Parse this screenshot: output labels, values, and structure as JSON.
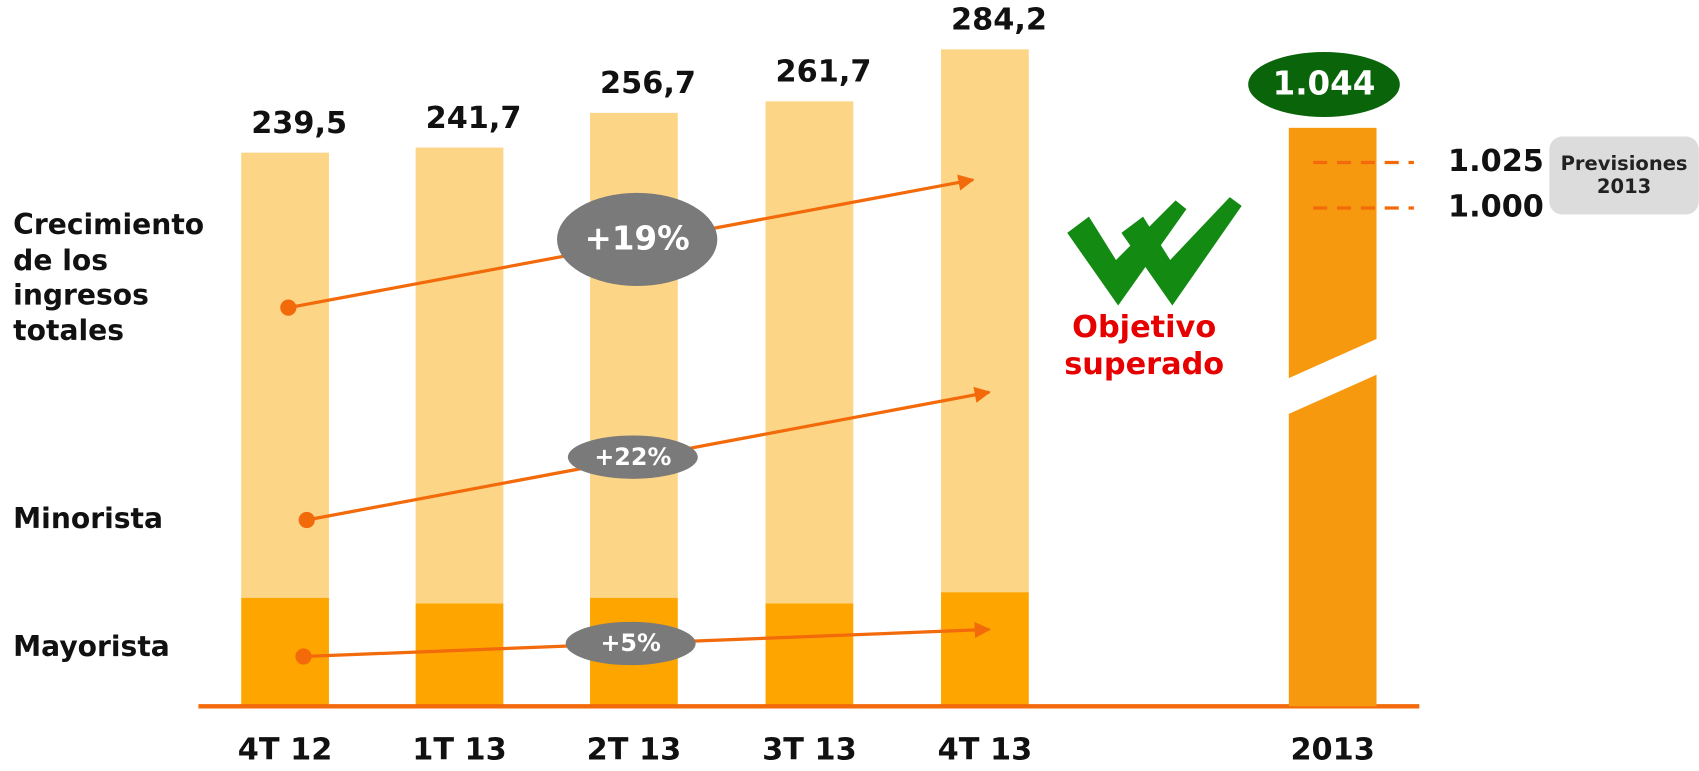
{
  "chart_data": {
    "type": "bar",
    "categories": [
      "4T 12",
      "1T 13",
      "2T 13",
      "3T 13",
      "4T 13"
    ],
    "series": [
      {
        "name": "Mayorista",
        "color": "#ffa500",
        "values": [
          47,
          44.5,
          47,
          44.5,
          49.4
        ]
      },
      {
        "name": "Minorista",
        "color": "#fdd586",
        "values": [
          192.5,
          197.2,
          209.7,
          217.2,
          234.8
        ]
      }
    ],
    "totals_name": "Crecimiento de los ingresos totales",
    "totals": [
      239.5,
      241.7,
      256.7,
      261.7,
      284.2
    ],
    "total_labels": [
      "239,5",
      "241,7",
      "256,7",
      "261,7",
      "284,2"
    ],
    "growth": {
      "values": [
        19,
        22,
        5
      ],
      "value_labels": [
        "+19%",
        "+22%",
        "+5%"
      ]
    },
    "annual": {
      "category": "2013",
      "value": 1044,
      "value_label": "1.044",
      "color": "#f7990f"
    },
    "targets": {
      "name": "Previsiones 2013",
      "values": [
        1025,
        1000
      ],
      "value_labels": [
        "1.025",
        "1.000"
      ]
    },
    "annotation": "Objetivo superado"
  }
}
